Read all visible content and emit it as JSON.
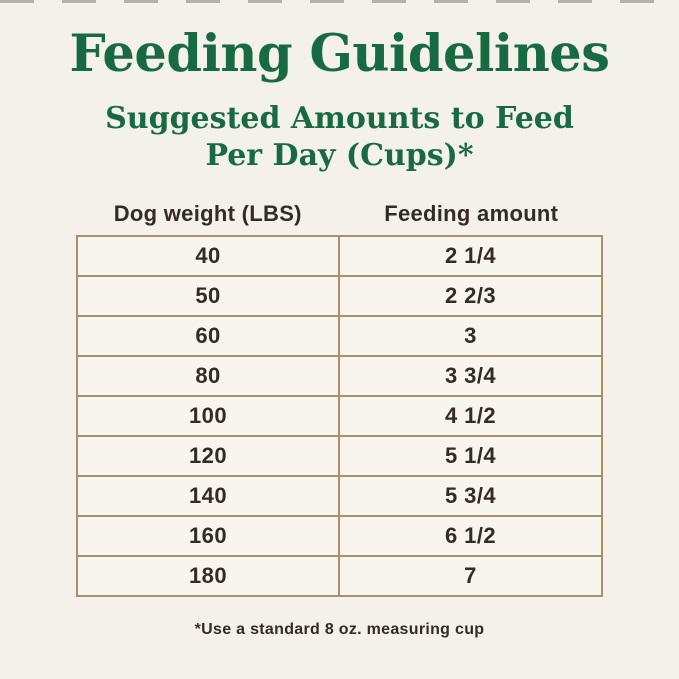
{
  "header": {
    "title": "Feeding Guidelines",
    "subtitle_line1": "Suggested Amounts to Feed",
    "subtitle_line2": "Per Day (Cups)*"
  },
  "table": {
    "columns": [
      "Dog weight (LBS)",
      "Feeding amount"
    ],
    "rows": [
      {
        "weight": "40",
        "amount": "2 1/4"
      },
      {
        "weight": "50",
        "amount": "2 2/3"
      },
      {
        "weight": "60",
        "amount": "3"
      },
      {
        "weight": "80",
        "amount": "3 3/4"
      },
      {
        "weight": "100",
        "amount": "4 1/2"
      },
      {
        "weight": "120",
        "amount": "5 1/4"
      },
      {
        "weight": "140",
        "amount": "5 3/4"
      },
      {
        "weight": "160",
        "amount": "6 1/2"
      },
      {
        "weight": "180",
        "amount": "7"
      }
    ]
  },
  "footnote": "*Use a standard 8 oz. measuring cup",
  "colors": {
    "background": "#f3f1ea",
    "title_green": "#186a42",
    "table_border": "#a8906f",
    "cell_background": "#f7f5ee",
    "text_dark": "#362a25"
  },
  "chart_data": {
    "type": "table",
    "title": "Feeding Guidelines",
    "subtitle": "Suggested Amounts to Feed Per Day (Cups)*",
    "columns": [
      "Dog weight (LBS)",
      "Feeding amount"
    ],
    "rows": [
      [
        40,
        "2 1/4"
      ],
      [
        50,
        "2 2/3"
      ],
      [
        60,
        "3"
      ],
      [
        80,
        "3 3/4"
      ],
      [
        100,
        "4 1/2"
      ],
      [
        120,
        "5 1/4"
      ],
      [
        140,
        "5 3/4"
      ],
      [
        160,
        "6 1/2"
      ],
      [
        180,
        "7"
      ]
    ],
    "footnote": "*Use a standard 8 oz. measuring cup"
  }
}
